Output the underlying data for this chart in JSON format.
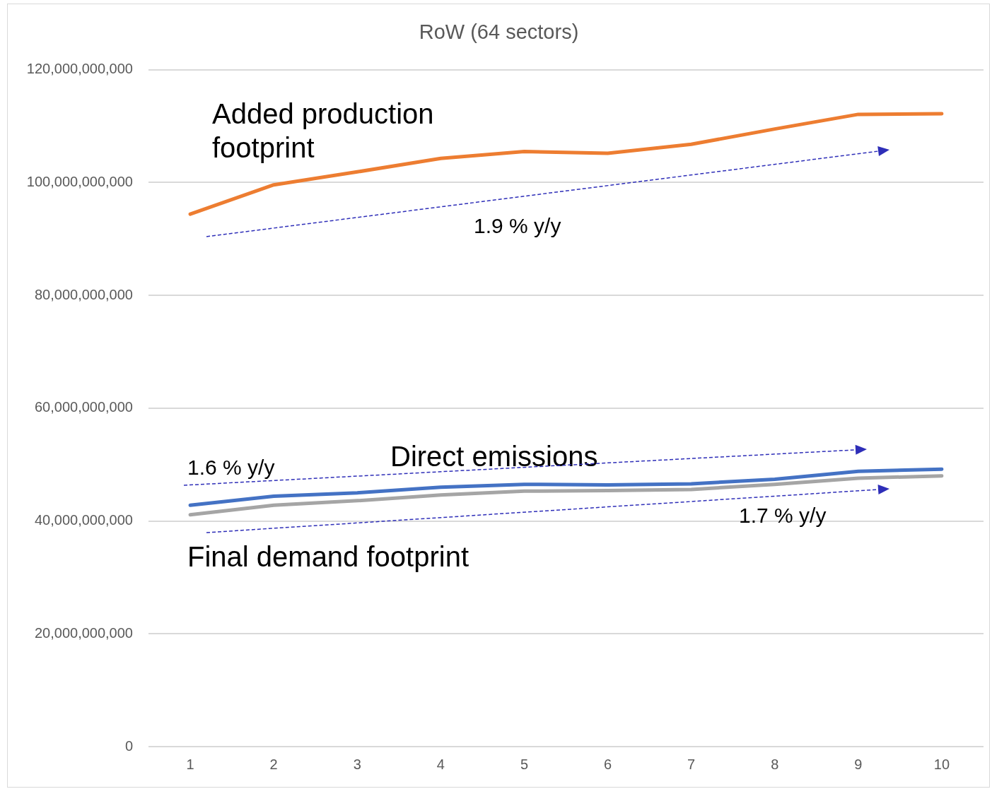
{
  "chart_data": {
    "type": "line",
    "title": "RoW (64 sectors)",
    "categories": [
      "1",
      "2",
      "3",
      "4",
      "5",
      "6",
      "7",
      "8",
      "9",
      "10"
    ],
    "series": [
      {
        "name": "Added production footprint",
        "color": "#ed7d31",
        "values": [
          94400000000.0,
          99600000000.0,
          101900000000.0,
          104300000000.0,
          105500000000.0,
          105200000000.0,
          106800000000.0,
          109500000000.0,
          112100000000.0,
          112200000000.0
        ]
      },
      {
        "name": "Direct emissions",
        "color": "#4472c4",
        "values": [
          42800000000.0,
          44400000000.0,
          45000000000.0,
          46000000000.0,
          46500000000.0,
          46400000000.0,
          46600000000.0,
          47400000000.0,
          48800000000.0,
          49200000000.0
        ]
      },
      {
        "name": "Final demand footprint",
        "color": "#a5a5a5",
        "values": [
          41100000000.0,
          42800000000.0,
          43600000000.0,
          44600000000.0,
          45300000000.0,
          45400000000.0,
          45600000000.0,
          46500000000.0,
          47600000000.0,
          48000000000.0
        ]
      }
    ],
    "ylim": [
      0,
      120000000000
    ],
    "yticks": [
      0,
      {
        "value": 20000000000,
        "label": "20,000,000,000"
      },
      {
        "value": 40000000000,
        "label": "40,000,000,000"
      },
      {
        "value": 60000000000,
        "label": "60,000,000,000"
      },
      {
        "value": 80000000000,
        "label": "80,000,000,000"
      },
      {
        "value": 100000000000,
        "label": "100,000,000,000"
      },
      {
        "value": 120000000000,
        "label": "120,000,000,000"
      }
    ],
    "grid": "y",
    "legend": false,
    "marker": "none",
    "line_style": "solid",
    "annotations": [
      "1.9 % y/y",
      "1.6 % y/y",
      "1.7 % y/y"
    ]
  }
}
